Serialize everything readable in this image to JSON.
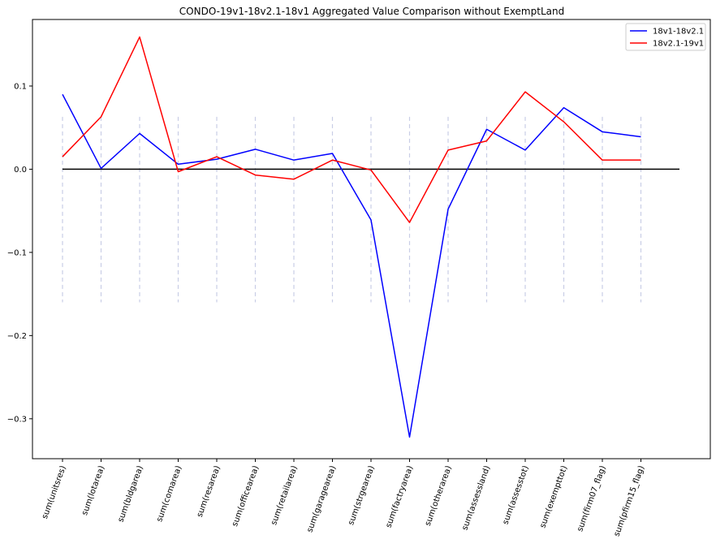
{
  "chart_data": {
    "type": "line",
    "title": "CONDO-19v1-18v2.1-18v1 Aggregated Value Comparison without ExemptLand",
    "xlabel": "",
    "ylabel": "",
    "categories": [
      "sum(unitsres)",
      "sum(lotarea)",
      "sum(bldgarea)",
      "sum(comarea)",
      "sum(resarea)",
      "sum(officearea)",
      "sum(retailarea)",
      "sum(garagearea)",
      "sum(strgearea)",
      "sum(factryarea)",
      "sum(otherarea)",
      "sum(assessland)",
      "sum(assesstot)",
      "sum(exempttot)",
      "sum(firm07_flag)",
      "sum(pfirm15_flag)"
    ],
    "series": [
      {
        "name": "18v1-18v2.1",
        "color": "#0000ff",
        "values": [
          0.09,
          0.001,
          0.043,
          0.006,
          0.012,
          0.024,
          0.011,
          0.019,
          -0.061,
          -0.322,
          -0.048,
          0.048,
          0.023,
          0.074,
          0.045,
          0.039
        ]
      },
      {
        "name": "18v2.1-19v1",
        "color": "#ff0000",
        "values": [
          0.015,
          0.063,
          0.159,
          -0.003,
          0.015,
          -0.007,
          -0.012,
          0.011,
          -0.001,
          -0.064,
          0.023,
          0.034,
          0.093,
          0.057,
          0.011,
          0.011
        ]
      }
    ],
    "reference_line": {
      "y": 0.0,
      "color": "#000000"
    },
    "category_guides": {
      "from": -0.16,
      "to": 0.063,
      "color": "#c8cde6"
    },
    "yticks": [
      0.1,
      0.0,
      -0.1,
      -0.2,
      -0.3
    ],
    "ytick_labels": [
      "0.1",
      "0.0",
      "−0.1",
      "−0.2",
      "−0.3"
    ],
    "ylim": [
      -0.348,
      0.18
    ],
    "grid": false,
    "legend": {
      "position": "top-right",
      "entries": [
        "18v1-18v2.1",
        "18v2.1-19v1"
      ]
    }
  }
}
